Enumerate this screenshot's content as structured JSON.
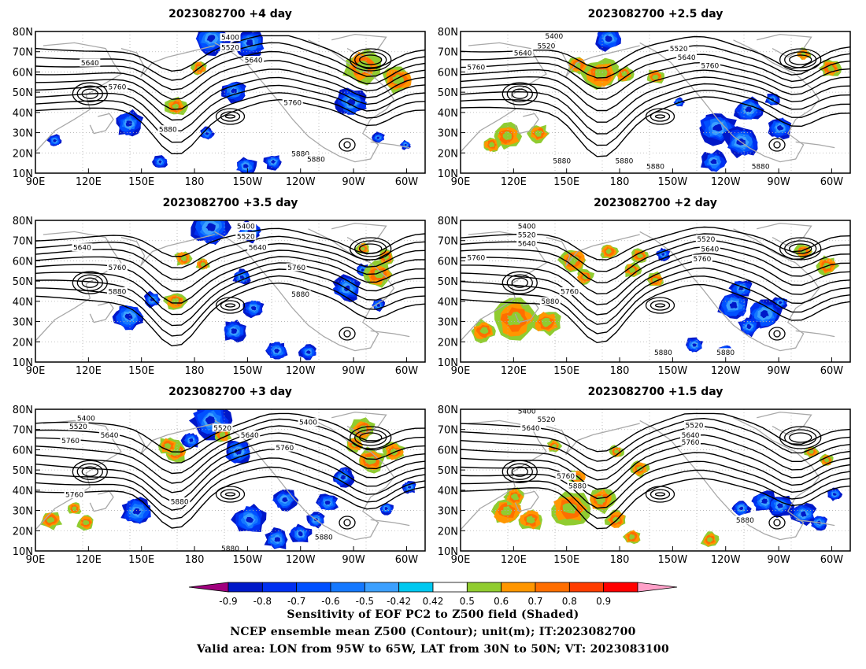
{
  "panels": [
    {
      "title": "2023082700  +4 day",
      "contour_labels": [
        "5400",
        "5520",
        "5640",
        "5640",
        "5760",
        "5760",
        "5880",
        "5880",
        "5880"
      ]
    },
    {
      "title": "2023082700  +2.5 day",
      "contour_labels": [
        "5400",
        "5520",
        "5640",
        "5520",
        "5640",
        "5760",
        "5760",
        "5880",
        "5880",
        "5880",
        "5880"
      ]
    },
    {
      "title": "2023082700  +3.5 day",
      "contour_labels": [
        "5400",
        "5520",
        "5640",
        "5640",
        "5760",
        "5760",
        "5880",
        "5880"
      ]
    },
    {
      "title": "2023082700  +2 day",
      "contour_labels": [
        "5400",
        "5520",
        "5640",
        "5760",
        "5520",
        "5640",
        "5760",
        "5760",
        "5880",
        "5880",
        "5880"
      ]
    },
    {
      "title": "2023082700  +3 day",
      "contour_labels": [
        "5400",
        "5520",
        "5640",
        "5760",
        "5520",
        "5640",
        "5400",
        "5760",
        "5760",
        "5880",
        "5880",
        "5880"
      ]
    },
    {
      "title": "2023082700  +1.5 day",
      "contour_labels": [
        "5400",
        "5520",
        "5640",
        "5520",
        "5640",
        "5760",
        "5760",
        "5880",
        "5880"
      ]
    }
  ],
  "axes": {
    "lat_ticks": [
      "80N",
      "70N",
      "60N",
      "50N",
      "40N",
      "30N",
      "20N",
      "10N"
    ],
    "lon_ticks": [
      "90E",
      "120E",
      "150E",
      "180",
      "150W",
      "120W",
      "90W",
      "60W"
    ]
  },
  "colorbar": {
    "ticks": [
      "-0.9",
      "-0.8",
      "-0.7",
      "-0.6",
      "-0.5",
      "-0.42",
      "0.42",
      "0.5",
      "0.6",
      "0.7",
      "0.8",
      "0.9"
    ],
    "colors": [
      "#a0007e",
      "#0018c8",
      "#0030f0",
      "#0050ff",
      "#1478ff",
      "#3ca0ff",
      "#00c8f0",
      "#ffffff",
      "#90cc30",
      "#ff9600",
      "#ff6e00",
      "#ff3c00",
      "#ff0000",
      "#ffa0c8"
    ]
  },
  "caption": {
    "line1": "Sensitivity of EOF PC2 to Z500 field (Shaded)",
    "line2": "NCEP ensemble mean Z500 (Contour); unit(m); IT:2023082700",
    "line3": "Valid area: LON from 95W to 65W, LAT from 30N to 50N; VT: 2023083100"
  }
}
